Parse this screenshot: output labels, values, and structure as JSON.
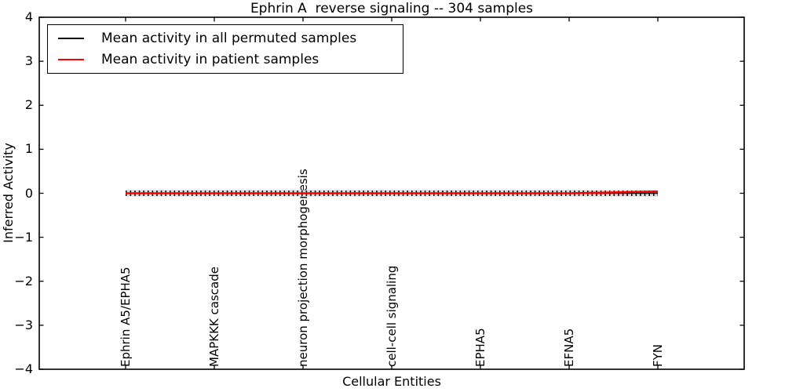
{
  "chart_data": {
    "type": "line",
    "title": "Ephrin A  reverse signaling -- 304 samples",
    "xlabel": "Cellular Entities",
    "ylabel": "Inferred Activity",
    "ylim": [
      -4,
      4
    ],
    "yticks": [
      -4,
      -3,
      -2,
      -1,
      0,
      1,
      2,
      3,
      4
    ],
    "grid": false,
    "legend_position": "upper left",
    "categories": [
      "Ephrin A5/EPHA5",
      "MAPKKK cascade",
      "neuron projection morphogenesis",
      "cell-cell signaling",
      "EPHA5",
      "EFNA5",
      "FYN"
    ],
    "series": [
      {
        "name": "Mean activity in all permuted samples",
        "color": "#000000",
        "values": [
          0,
          0,
          0,
          0,
          0,
          0,
          0
        ]
      },
      {
        "name": "Mean activity in patient samples",
        "color": "#ff0000",
        "values": [
          0,
          0,
          0,
          0,
          0,
          0,
          0.04
        ]
      }
    ],
    "error_band": {
      "color": "#dcdcdc",
      "halfwidth": 0.075,
      "marker_color": "#000000"
    }
  }
}
